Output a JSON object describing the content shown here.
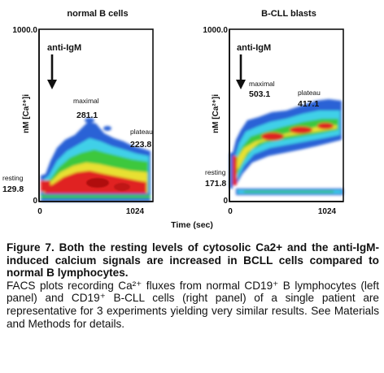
{
  "figure": {
    "x_axis_label": "Time (sec)",
    "panels": [
      {
        "title": "normal B cells",
        "y_label": "nM [Ca²⁺]i",
        "y_max_tick": "1000.0",
        "y_zero_tick": "0",
        "x_ticks": [
          "0",
          "1024"
        ],
        "stimulus_label": "anti-IgM",
        "maximal_label": "maximal",
        "maximal_value": "281.1",
        "plateau_label": "plateau",
        "plateau_value": "223.8",
        "resting_label": "resting",
        "resting_value": "129.8"
      },
      {
        "title": "B-CLL blasts",
        "y_label": "nM [Ca²⁺]i",
        "y_max_tick": "1000.0",
        "y_zero_tick": "0",
        "x_ticks": [
          "0",
          "1024"
        ],
        "stimulus_label": "anti-IgM",
        "maximal_label": "maximal",
        "maximal_value": "503.1",
        "plateau_label": "plateau",
        "plateau_value": "417.1",
        "resting_label": "resting",
        "resting_value": "171.8"
      }
    ]
  },
  "caption": {
    "title": "Figure 7. Both the resting levels of cytosolic Ca2+ and the anti-IgM-induced calcium signals are increased in BCLL cells compared to normal B lymphocytes.",
    "body": "FACS plots recording Ca²⁺ fluxes from normal CD19⁺ B lymphocytes (left panel) and CD19⁺ B-CLL cells (right panel) of a single patient are representative for 3 experiments yielding very similar results. See Materials and Methods for details."
  }
}
